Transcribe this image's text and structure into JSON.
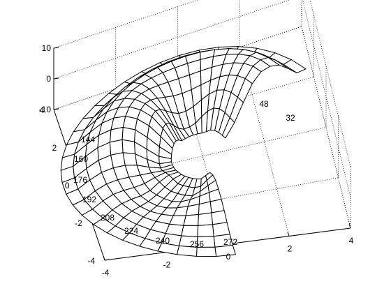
{
  "chart_data": {
    "type": "surface-3d-polar-mesh",
    "title": "",
    "xlabel": "",
    "ylabel": "",
    "zlabel": "",
    "xlim": [
      -4,
      4
    ],
    "ylim": [
      -4,
      4
    ],
    "zlim": [
      -10,
      10
    ],
    "x_ticks": [
      "-4",
      "-2",
      "0",
      "2",
      "4"
    ],
    "y_ticks": [
      "-4",
      "-2",
      "0",
      "2",
      "4"
    ],
    "z_ticks": [
      "-10",
      "0",
      "10"
    ],
    "angle_labels": [
      "32",
      "48",
      "144",
      "160",
      "176",
      "192",
      "208",
      "224",
      "240",
      "256",
      "272"
    ],
    "mesh": {
      "angle_range_deg": [
        32,
        272
      ],
      "radius_range": [
        1.0,
        4.5
      ],
      "angular_lines": 30,
      "radial_lines": 9
    },
    "grid": true,
    "colors": {
      "mesh_fill": "#ffffff",
      "lines": "#000000"
    }
  }
}
